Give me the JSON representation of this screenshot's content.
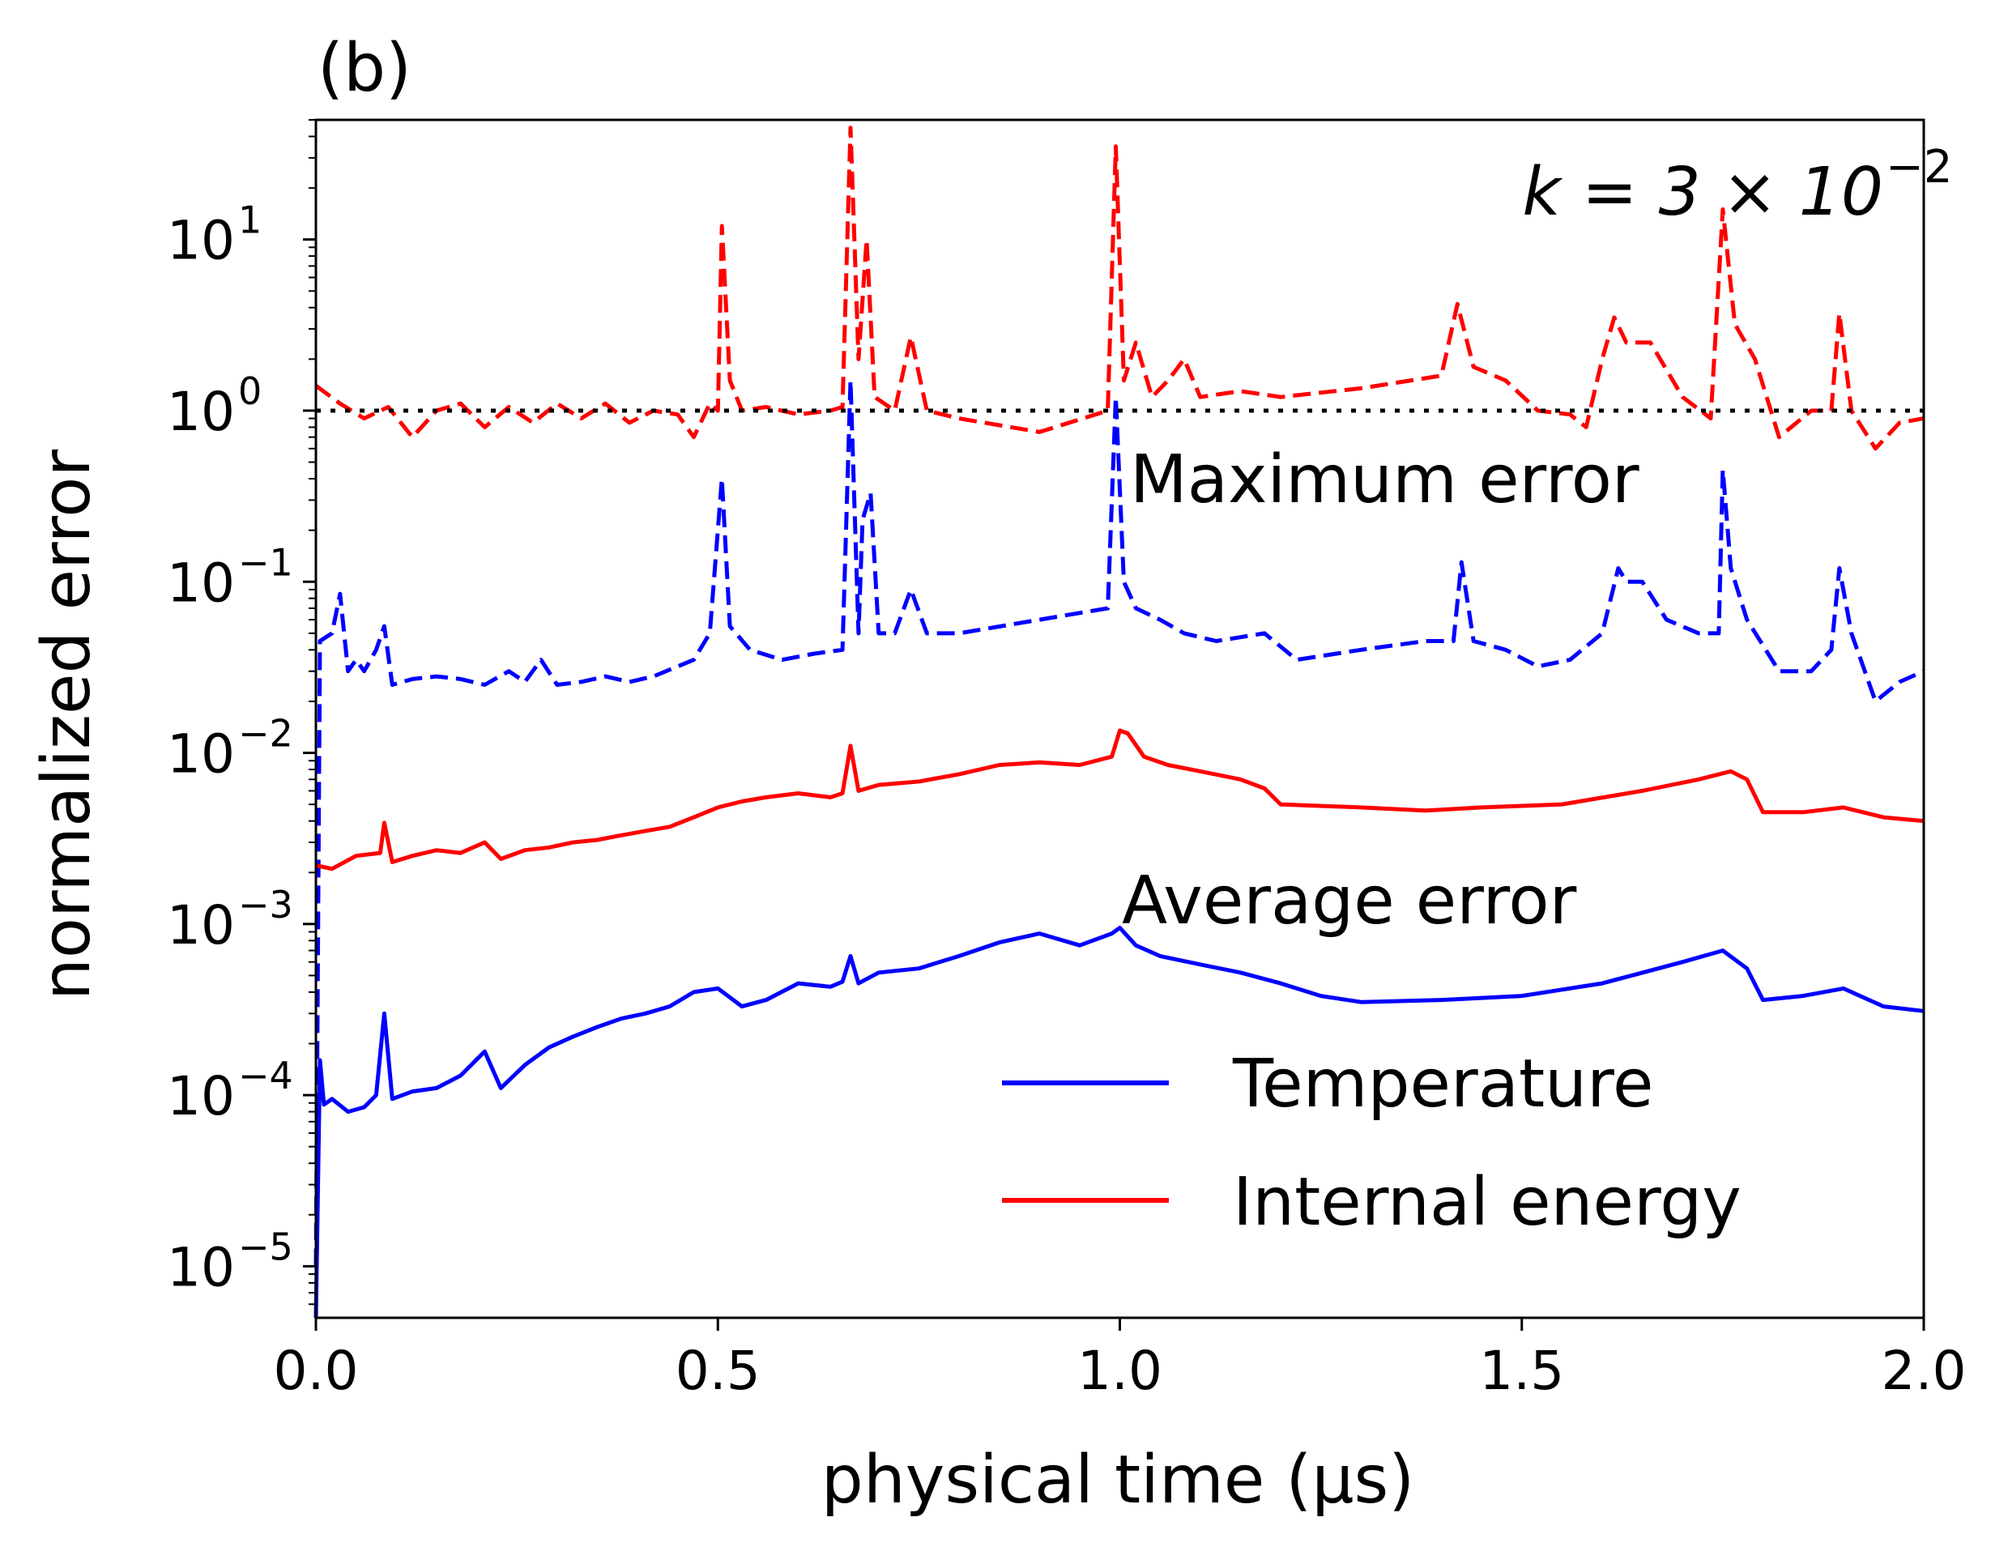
{
  "chart_data": {
    "type": "line",
    "panel_label": "(b)",
    "annotation_k": "k = 3 × 10",
    "annotation_k_exp": "−2",
    "text_max": "Maximum error",
    "text_avg": "Average error",
    "xlabel": "physical time (μs)",
    "ylabel": "normalized error",
    "xlim": [
      0.0,
      2.0
    ],
    "ylim": [
      5e-06,
      50
    ],
    "y_scale": "log",
    "x_ticks": [
      "0.0",
      "0.5",
      "1.0",
      "1.5",
      "2.0"
    ],
    "y_ticks": [
      {
        "base": "10",
        "exp": "1"
      },
      {
        "base": "10",
        "exp": "0"
      },
      {
        "base": "10",
        "exp": "−1"
      },
      {
        "base": "10",
        "exp": "−2"
      },
      {
        "base": "10",
        "exp": "−3"
      },
      {
        "base": "10",
        "exp": "−4"
      },
      {
        "base": "10",
        "exp": "−5"
      }
    ],
    "reference_line": {
      "y": 1.0,
      "style": "dotted",
      "color": "#000000"
    },
    "legend": [
      {
        "name": "Temperature",
        "color": "#0000ff"
      },
      {
        "name": "Internal energy",
        "color": "#ff0000"
      }
    ],
    "legend_placement": "lower-right",
    "series": [
      {
        "name": "Temperature maximum error",
        "color": "#0000ff",
        "dash": true,
        "points": [
          [
            0.0,
            1e-05
          ],
          [
            0.005,
            0.045
          ],
          [
            0.02,
            0.05
          ],
          [
            0.03,
            0.085
          ],
          [
            0.04,
            0.03
          ],
          [
            0.05,
            0.035
          ],
          [
            0.06,
            0.03
          ],
          [
            0.075,
            0.04
          ],
          [
            0.085,
            0.055
          ],
          [
            0.095,
            0.025
          ],
          [
            0.12,
            0.027
          ],
          [
            0.15,
            0.028
          ],
          [
            0.18,
            0.027
          ],
          [
            0.21,
            0.025
          ],
          [
            0.24,
            0.03
          ],
          [
            0.26,
            0.026
          ],
          [
            0.28,
            0.035
          ],
          [
            0.3,
            0.025
          ],
          [
            0.33,
            0.026
          ],
          [
            0.36,
            0.028
          ],
          [
            0.39,
            0.026
          ],
          [
            0.42,
            0.028
          ],
          [
            0.45,
            0.032
          ],
          [
            0.47,
            0.035
          ],
          [
            0.49,
            0.05
          ],
          [
            0.505,
            0.4
          ],
          [
            0.515,
            0.055
          ],
          [
            0.54,
            0.04
          ],
          [
            0.58,
            0.035
          ],
          [
            0.62,
            0.038
          ],
          [
            0.655,
            0.04
          ],
          [
            0.665,
            1.5
          ],
          [
            0.675,
            0.05
          ],
          [
            0.68,
            0.23
          ],
          [
            0.69,
            0.33
          ],
          [
            0.7,
            0.05
          ],
          [
            0.72,
            0.05
          ],
          [
            0.74,
            0.09
          ],
          [
            0.76,
            0.05
          ],
          [
            0.8,
            0.05
          ],
          [
            0.9,
            0.06
          ],
          [
            0.985,
            0.07
          ],
          [
            0.995,
            1.2
          ],
          [
            1.005,
            0.1
          ],
          [
            1.02,
            0.07
          ],
          [
            1.05,
            0.06
          ],
          [
            1.08,
            0.05
          ],
          [
            1.12,
            0.045
          ],
          [
            1.18,
            0.05
          ],
          [
            1.22,
            0.035
          ],
          [
            1.3,
            0.04
          ],
          [
            1.38,
            0.045
          ],
          [
            1.415,
            0.045
          ],
          [
            1.425,
            0.13
          ],
          [
            1.44,
            0.045
          ],
          [
            1.48,
            0.04
          ],
          [
            1.52,
            0.032
          ],
          [
            1.56,
            0.035
          ],
          [
            1.6,
            0.05
          ],
          [
            1.62,
            0.12
          ],
          [
            1.63,
            0.1
          ],
          [
            1.65,
            0.1
          ],
          [
            1.68,
            0.06
          ],
          [
            1.72,
            0.05
          ],
          [
            1.745,
            0.05
          ],
          [
            1.75,
            0.45
          ],
          [
            1.76,
            0.12
          ],
          [
            1.78,
            0.06
          ],
          [
            1.82,
            0.03
          ],
          [
            1.86,
            0.03
          ],
          [
            1.885,
            0.04
          ],
          [
            1.895,
            0.12
          ],
          [
            1.91,
            0.05
          ],
          [
            1.94,
            0.02
          ],
          [
            1.97,
            0.026
          ],
          [
            2.0,
            0.03
          ]
        ]
      },
      {
        "name": "Internal energy maximum error",
        "color": "#ff0000",
        "dash": true,
        "points": [
          [
            0.0,
            1.4
          ],
          [
            0.03,
            1.1
          ],
          [
            0.06,
            0.9
          ],
          [
            0.09,
            1.05
          ],
          [
            0.12,
            0.7
          ],
          [
            0.15,
            1.0
          ],
          [
            0.18,
            1.1
          ],
          [
            0.21,
            0.8
          ],
          [
            0.24,
            1.05
          ],
          [
            0.27,
            0.85
          ],
          [
            0.3,
            1.1
          ],
          [
            0.33,
            0.9
          ],
          [
            0.36,
            1.1
          ],
          [
            0.39,
            0.85
          ],
          [
            0.42,
            1.0
          ],
          [
            0.45,
            0.95
          ],
          [
            0.47,
            0.7
          ],
          [
            0.49,
            1.1
          ],
          [
            0.5,
            1.0
          ],
          [
            0.505,
            12
          ],
          [
            0.515,
            1.5
          ],
          [
            0.53,
            1.0
          ],
          [
            0.56,
            1.05
          ],
          [
            0.6,
            0.95
          ],
          [
            0.64,
            1.0
          ],
          [
            0.655,
            1.05
          ],
          [
            0.665,
            45
          ],
          [
            0.675,
            2.0
          ],
          [
            0.685,
            10
          ],
          [
            0.695,
            1.2
          ],
          [
            0.72,
            1.0
          ],
          [
            0.74,
            2.7
          ],
          [
            0.76,
            1.0
          ],
          [
            0.8,
            0.9
          ],
          [
            0.9,
            0.75
          ],
          [
            0.985,
            1.0
          ],
          [
            0.995,
            35
          ],
          [
            1.005,
            1.5
          ],
          [
            1.02,
            2.5
          ],
          [
            1.04,
            1.2
          ],
          [
            1.06,
            1.5
          ],
          [
            1.08,
            2.0
          ],
          [
            1.1,
            1.2
          ],
          [
            1.15,
            1.3
          ],
          [
            1.2,
            1.2
          ],
          [
            1.3,
            1.35
          ],
          [
            1.4,
            1.6
          ],
          [
            1.42,
            4.2
          ],
          [
            1.44,
            1.8
          ],
          [
            1.48,
            1.5
          ],
          [
            1.52,
            1.0
          ],
          [
            1.56,
            0.95
          ],
          [
            1.58,
            0.8
          ],
          [
            1.6,
            2.0
          ],
          [
            1.615,
            3.5
          ],
          [
            1.63,
            2.5
          ],
          [
            1.66,
            2.5
          ],
          [
            1.7,
            1.2
          ],
          [
            1.735,
            0.9
          ],
          [
            1.75,
            15
          ],
          [
            1.765,
            3.2
          ],
          [
            1.79,
            2.0
          ],
          [
            1.82,
            0.7
          ],
          [
            1.86,
            1.0
          ],
          [
            1.885,
            1.0
          ],
          [
            1.895,
            3.7
          ],
          [
            1.91,
            1.0
          ],
          [
            1.94,
            0.6
          ],
          [
            1.97,
            0.85
          ],
          [
            2.0,
            0.9
          ]
        ]
      },
      {
        "name": "Internal energy average error",
        "color": "#ff0000",
        "dash": false,
        "points": [
          [
            0.0,
            0.0022
          ],
          [
            0.02,
            0.0021
          ],
          [
            0.05,
            0.0025
          ],
          [
            0.08,
            0.0026
          ],
          [
            0.085,
            0.0039
          ],
          [
            0.095,
            0.0023
          ],
          [
            0.12,
            0.0025
          ],
          [
            0.15,
            0.0027
          ],
          [
            0.18,
            0.0026
          ],
          [
            0.21,
            0.003
          ],
          [
            0.23,
            0.0024
          ],
          [
            0.26,
            0.0027
          ],
          [
            0.29,
            0.0028
          ],
          [
            0.32,
            0.003
          ],
          [
            0.35,
            0.0031
          ],
          [
            0.38,
            0.0033
          ],
          [
            0.41,
            0.0035
          ],
          [
            0.44,
            0.0037
          ],
          [
            0.47,
            0.0042
          ],
          [
            0.5,
            0.0048
          ],
          [
            0.53,
            0.0052
          ],
          [
            0.56,
            0.0055
          ],
          [
            0.6,
            0.0058
          ],
          [
            0.64,
            0.0055
          ],
          [
            0.655,
            0.0058
          ],
          [
            0.665,
            0.011
          ],
          [
            0.675,
            0.006
          ],
          [
            0.7,
            0.0065
          ],
          [
            0.75,
            0.0068
          ],
          [
            0.8,
            0.0075
          ],
          [
            0.85,
            0.0085
          ],
          [
            0.9,
            0.0088
          ],
          [
            0.95,
            0.0085
          ],
          [
            0.99,
            0.0095
          ],
          [
            1.0,
            0.0135
          ],
          [
            1.01,
            0.013
          ],
          [
            1.03,
            0.0095
          ],
          [
            1.06,
            0.0085
          ],
          [
            1.1,
            0.0078
          ],
          [
            1.15,
            0.007
          ],
          [
            1.18,
            0.0062
          ],
          [
            1.2,
            0.005
          ],
          [
            1.3,
            0.0048
          ],
          [
            1.38,
            0.0046
          ],
          [
            1.45,
            0.0048
          ],
          [
            1.55,
            0.005
          ],
          [
            1.65,
            0.006
          ],
          [
            1.72,
            0.007
          ],
          [
            1.76,
            0.0078
          ],
          [
            1.78,
            0.007
          ],
          [
            1.8,
            0.0045
          ],
          [
            1.85,
            0.0045
          ],
          [
            1.9,
            0.0048
          ],
          [
            1.95,
            0.0042
          ],
          [
            2.0,
            0.004
          ]
        ]
      },
      {
        "name": "Temperature average error",
        "color": "#0000ff",
        "dash": false,
        "points": [
          [
            0.0,
            5e-06
          ],
          [
            0.005,
            0.00016
          ],
          [
            0.01,
            8.8e-05
          ],
          [
            0.02,
            9.5e-05
          ],
          [
            0.04,
            8e-05
          ],
          [
            0.06,
            8.5e-05
          ],
          [
            0.075,
            0.0001
          ],
          [
            0.085,
            0.0003
          ],
          [
            0.095,
            9.5e-05
          ],
          [
            0.12,
            0.000105
          ],
          [
            0.15,
            0.00011
          ],
          [
            0.18,
            0.00013
          ],
          [
            0.21,
            0.00018
          ],
          [
            0.23,
            0.00011
          ],
          [
            0.26,
            0.00015
          ],
          [
            0.29,
            0.00019
          ],
          [
            0.32,
            0.00022
          ],
          [
            0.35,
            0.00025
          ],
          [
            0.38,
            0.00028
          ],
          [
            0.41,
            0.0003
          ],
          [
            0.44,
            0.00033
          ],
          [
            0.47,
            0.0004
          ],
          [
            0.5,
            0.00042
          ],
          [
            0.53,
            0.00033
          ],
          [
            0.56,
            0.00036
          ],
          [
            0.6,
            0.00045
          ],
          [
            0.64,
            0.00043
          ],
          [
            0.655,
            0.00046
          ],
          [
            0.665,
            0.00065
          ],
          [
            0.675,
            0.00045
          ],
          [
            0.7,
            0.00052
          ],
          [
            0.75,
            0.00055
          ],
          [
            0.8,
            0.00065
          ],
          [
            0.85,
            0.00078
          ],
          [
            0.9,
            0.00088
          ],
          [
            0.95,
            0.00075
          ],
          [
            0.99,
            0.00088
          ],
          [
            1.0,
            0.00095
          ],
          [
            1.02,
            0.00075
          ],
          [
            1.05,
            0.00065
          ],
          [
            1.1,
            0.00058
          ],
          [
            1.15,
            0.00052
          ],
          [
            1.2,
            0.00045
          ],
          [
            1.25,
            0.00038
          ],
          [
            1.3,
            0.00035
          ],
          [
            1.4,
            0.00036
          ],
          [
            1.5,
            0.00038
          ],
          [
            1.6,
            0.00045
          ],
          [
            1.7,
            0.0006
          ],
          [
            1.75,
            0.0007
          ],
          [
            1.78,
            0.00055
          ],
          [
            1.8,
            0.00036
          ],
          [
            1.85,
            0.00038
          ],
          [
            1.9,
            0.00042
          ],
          [
            1.95,
            0.00033
          ],
          [
            2.0,
            0.00031
          ]
        ]
      }
    ]
  }
}
